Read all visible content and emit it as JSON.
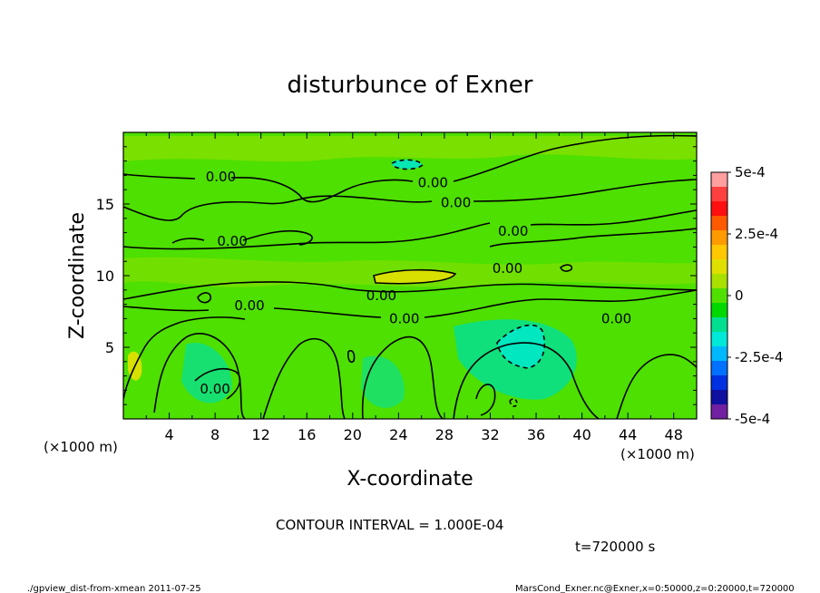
{
  "chart_data": {
    "type": "heatmap",
    "title": "disturbunce of Exner",
    "xlabel": "X-coordinate",
    "ylabel": "Z-coordinate",
    "x_unit_label": "(×1000 m)",
    "y_unit_label": "(×1000 m)",
    "xlim": [
      0,
      50
    ],
    "ylim": [
      0,
      20
    ],
    "x_ticks": [
      4,
      8,
      12,
      16,
      20,
      24,
      28,
      32,
      36,
      40,
      44,
      48
    ],
    "y_ticks": [
      5,
      10,
      15
    ],
    "colorbar": {
      "range": [
        -0.0005,
        0.0005
      ],
      "tick_labels": [
        "5e-4",
        "2.5e-4",
        "0",
        "-2.5e-4",
        "-5e-4"
      ],
      "tick_values": [
        0.0005,
        0.00025,
        0,
        -0.00025,
        -0.0005
      ],
      "colors": [
        "#ff9fa0",
        "#ff4040",
        "#ff1010",
        "#ff5a00",
        "#ff9a00",
        "#ffc800",
        "#e0e000",
        "#a8e000",
        "#50e000",
        "#00d800",
        "#00e090",
        "#00e8d8",
        "#00b8ff",
        "#0070ff",
        "#0030e0",
        "#1010a0",
        "#7020a0"
      ]
    },
    "contour_labels": [
      {
        "text": "0.00",
        "x": 8.5,
        "z": 16.9
      },
      {
        "text": "0.00",
        "x": 27,
        "z": 16.5
      },
      {
        "text": "0.00",
        "x": 29,
        "z": 15.1
      },
      {
        "text": "0.00",
        "x": 9.5,
        "z": 12.4
      },
      {
        "text": "0.00",
        "x": 34,
        "z": 13.1
      },
      {
        "text": "0.00",
        "x": 33.5,
        "z": 10.5
      },
      {
        "text": "0.00",
        "x": 22.5,
        "z": 8.6
      },
      {
        "text": "0.00",
        "x": 11,
        "z": 7.9
      },
      {
        "text": "0.00",
        "x": 24.5,
        "z": 7.0
      },
      {
        "text": "0.00",
        "x": 43,
        "z": 7.0
      },
      {
        "text": "0.00",
        "x": 8,
        "z": 2.1
      }
    ],
    "contour_interval_text": "CONTOUR INTERVAL = 1.000E-04",
    "time_text": "t=720000 s"
  },
  "footer": {
    "left": "./gpview_dist-from-xmean  2011-07-25",
    "right": "MarsCond_Exner.nc@Exner,x=0:50000,z=0:20000,t=720000"
  }
}
